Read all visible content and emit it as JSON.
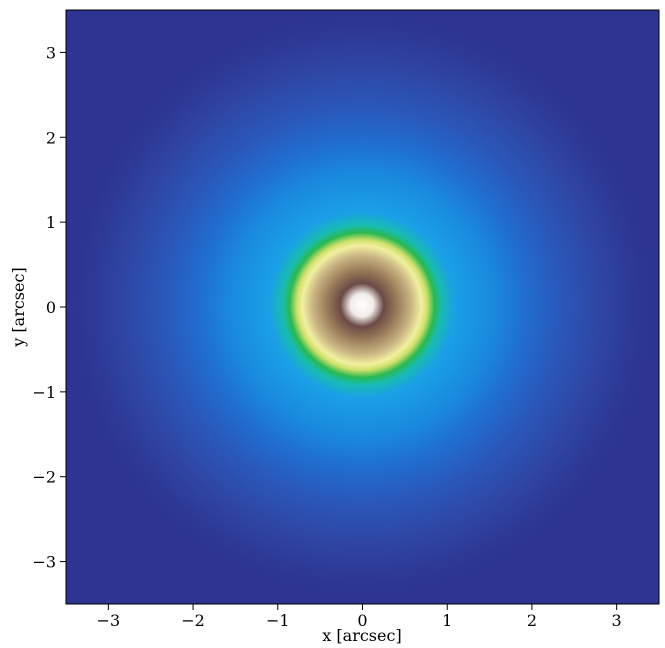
{
  "chart_data": {
    "type": "image",
    "xlabel": "x [arcsec]",
    "ylabel": "y [arcsec]",
    "xlim": [
      -3.5,
      3.5
    ],
    "ylim": [
      -3.5,
      3.5
    ],
    "xticks": [
      {
        "value": -3,
        "label": "−3"
      },
      {
        "value": -2,
        "label": "−2"
      },
      {
        "value": -1,
        "label": "−1"
      },
      0,
      1,
      2,
      3
    ],
    "yticks": [
      {
        "value": -3,
        "label": "−3"
      },
      {
        "value": -2,
        "label": "−2"
      },
      {
        "value": -1,
        "label": "−1"
      },
      0,
      1,
      2,
      3
    ]
  }
}
